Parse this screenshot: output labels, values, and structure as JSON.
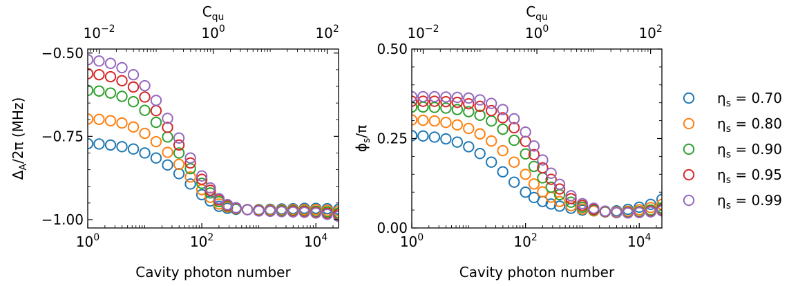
{
  "chart_data": [
    {
      "type": "scatter",
      "panel": "left",
      "xlabel": "Cavity photon number",
      "ylabel": "Δ_A/2π (MHz)",
      "top_xlabel": "C_qu",
      "x_scale": "log",
      "x_range": [
        1,
        25000
      ],
      "top_x_scale": "log",
      "top_x_range": [
        0.0063,
        158
      ],
      "top_xticks": [
        {
          "value": 0.01,
          "base": "10",
          "exp": "−2"
        },
        {
          "value": 1,
          "base": "10",
          "exp": "0"
        },
        {
          "value": 100,
          "base": "10",
          "exp": "2"
        }
      ],
      "xticks": [
        {
          "value": 1,
          "base": "10",
          "exp": "0"
        },
        {
          "value": 100,
          "base": "10",
          "exp": "2"
        },
        {
          "value": 10000,
          "base": "10",
          "exp": "4"
        }
      ],
      "y_range": [
        -1.025,
        -0.488
      ],
      "yticks": [
        {
          "value": -1.0,
          "label": "−1.00"
        },
        {
          "value": -0.75,
          "label": "−0.75"
        },
        {
          "value": -0.5,
          "label": "−0.50"
        }
      ],
      "grid": false,
      "x": [
        1,
        1.58,
        2.51,
        3.98,
        6.31,
        10,
        15.8,
        25.1,
        39.8,
        63.1,
        100,
        141,
        200,
        282,
        398,
        631,
        1000,
        1585,
        2512,
        3981,
        6310,
        10000,
        15850,
        25120
      ],
      "series": [
        {
          "name": "η_s = 0.70",
          "values": [
            -0.772,
            -0.773,
            -0.776,
            -0.781,
            -0.788,
            -0.8,
            -0.815,
            -0.836,
            -0.862,
            -0.893,
            -0.925,
            -0.944,
            -0.96,
            -0.966,
            -0.969,
            -0.97,
            -0.97,
            -0.969,
            -0.968,
            -0.967,
            -0.966,
            -0.966,
            -0.967,
            -0.969
          ]
        },
        {
          "name": "η_s = 0.80",
          "values": [
            -0.698,
            -0.699,
            -0.703,
            -0.71,
            -0.722,
            -0.741,
            -0.766,
            -0.798,
            -0.834,
            -0.872,
            -0.91,
            -0.933,
            -0.953,
            -0.962,
            -0.967,
            -0.97,
            -0.971,
            -0.971,
            -0.971,
            -0.97,
            -0.97,
            -0.97,
            -0.972,
            -0.974
          ]
        },
        {
          "name": "η_s = 0.90",
          "values": [
            -0.612,
            -0.614,
            -0.62,
            -0.63,
            -0.646,
            -0.672,
            -0.708,
            -0.752,
            -0.8,
            -0.847,
            -0.891,
            -0.92,
            -0.946,
            -0.959,
            -0.966,
            -0.97,
            -0.972,
            -0.973,
            -0.973,
            -0.973,
            -0.974,
            -0.975,
            -0.977,
            -0.98
          ]
        },
        {
          "name": "η_s = 0.95",
          "values": [
            -0.562,
            -0.565,
            -0.571,
            -0.583,
            -0.602,
            -0.632,
            -0.673,
            -0.723,
            -0.776,
            -0.83,
            -0.879,
            -0.912,
            -0.941,
            -0.957,
            -0.965,
            -0.97,
            -0.973,
            -0.974,
            -0.975,
            -0.975,
            -0.976,
            -0.978,
            -0.981,
            -0.985
          ]
        },
        {
          "name": "η_s = 0.99",
          "values": [
            -0.52,
            -0.524,
            -0.531,
            -0.544,
            -0.565,
            -0.598,
            -0.642,
            -0.696,
            -0.755,
            -0.815,
            -0.869,
            -0.905,
            -0.937,
            -0.955,
            -0.964,
            -0.97,
            -0.974,
            -0.975,
            -0.976,
            -0.977,
            -0.978,
            -0.98,
            -0.984,
            -0.99
          ]
        }
      ]
    },
    {
      "type": "scatter",
      "panel": "right",
      "xlabel": "Cavity photon number",
      "ylabel": "ϕ_s/π",
      "top_xlabel": "C_qu",
      "x_scale": "log",
      "x_range": [
        1,
        25000
      ],
      "top_x_scale": "log",
      "top_x_range": [
        0.0063,
        158
      ],
      "top_xticks": [
        {
          "value": 0.01,
          "base": "10",
          "exp": "−2"
        },
        {
          "value": 1,
          "base": "10",
          "exp": "0"
        },
        {
          "value": 100,
          "base": "10",
          "exp": "2"
        }
      ],
      "xticks": [
        {
          "value": 1,
          "base": "10",
          "exp": "0"
        },
        {
          "value": 100,
          "base": "10",
          "exp": "2"
        },
        {
          "value": 10000,
          "base": "10",
          "exp": "4"
        }
      ],
      "y_range": [
        0.0,
        0.5
      ],
      "yticks": [
        {
          "value": 0.0,
          "label": "0.00"
        },
        {
          "value": 0.25,
          "label": "0.25"
        },
        {
          "value": 0.5,
          "label": "0.50"
        }
      ],
      "grid": false,
      "x": [
        1,
        1.58,
        2.51,
        3.98,
        6.31,
        10,
        15.8,
        25.1,
        39.8,
        63.1,
        100,
        141,
        200,
        282,
        398,
        631,
        1000,
        1585,
        2512,
        3981,
        6310,
        10000,
        15850,
        25120
      ],
      "series": [
        {
          "name": "η_s = 0.70",
          "values": [
            0.258,
            0.257,
            0.254,
            0.249,
            0.24,
            0.227,
            0.208,
            0.184,
            0.157,
            0.128,
            0.1,
            0.085,
            0.074,
            0.067,
            0.061,
            0.055,
            0.05,
            0.048,
            0.047,
            0.048,
            0.052,
            0.058,
            0.066,
            0.08
          ]
        },
        {
          "name": "η_s = 0.80",
          "values": [
            0.302,
            0.301,
            0.299,
            0.295,
            0.288,
            0.278,
            0.263,
            0.243,
            0.216,
            0.184,
            0.15,
            0.123,
            0.101,
            0.086,
            0.074,
            0.062,
            0.053,
            0.048,
            0.045,
            0.045,
            0.047,
            0.051,
            0.057,
            0.066
          ]
        },
        {
          "name": "η_s = 0.90",
          "values": [
            0.338,
            0.338,
            0.337,
            0.335,
            0.331,
            0.325,
            0.315,
            0.299,
            0.276,
            0.245,
            0.207,
            0.172,
            0.14,
            0.114,
            0.093,
            0.072,
            0.058,
            0.05,
            0.045,
            0.043,
            0.044,
            0.046,
            0.05,
            0.056
          ]
        },
        {
          "name": "η_s = 0.95",
          "values": [
            0.354,
            0.354,
            0.354,
            0.353,
            0.351,
            0.347,
            0.34,
            0.328,
            0.308,
            0.28,
            0.242,
            0.205,
            0.168,
            0.136,
            0.109,
            0.082,
            0.063,
            0.052,
            0.046,
            0.043,
            0.043,
            0.044,
            0.047,
            0.051
          ]
        },
        {
          "name": "η_s = 0.99",
          "values": [
            0.367,
            0.367,
            0.367,
            0.366,
            0.365,
            0.363,
            0.358,
            0.348,
            0.331,
            0.305,
            0.268,
            0.229,
            0.19,
            0.153,
            0.122,
            0.09,
            0.068,
            0.055,
            0.047,
            0.043,
            0.042,
            0.043,
            0.045,
            0.048
          ]
        }
      ]
    }
  ],
  "legend": {
    "placement": "right",
    "items": [
      {
        "symbol": "η",
        "sub": "s",
        "text": " = 0.70",
        "color": "#1f77b4"
      },
      {
        "symbol": "η",
        "sub": "s",
        "text": " = 0.80",
        "color": "#ff7f0e"
      },
      {
        "symbol": "η",
        "sub": "s",
        "text": " = 0.90",
        "color": "#2ca02c"
      },
      {
        "symbol": "η",
        "sub": "s",
        "text": " = 0.95",
        "color": "#d62728"
      },
      {
        "symbol": "η",
        "sub": "s",
        "text": " = 0.99",
        "color": "#9467bd"
      }
    ]
  }
}
